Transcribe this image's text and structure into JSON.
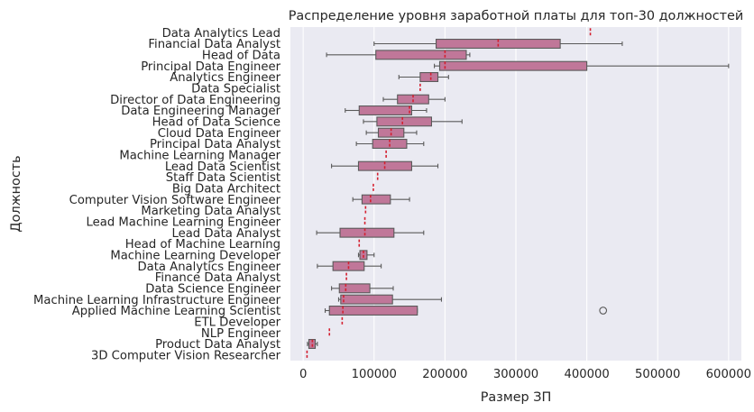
{
  "chart_data": {
    "type": "box",
    "title": "Распределение уровня заработной платы для топ-30 должностей",
    "xlabel": "Размер ЗП",
    "ylabel": "Должность",
    "xlim": [
      -18000,
      618000
    ],
    "xticks": [
      0,
      100000,
      200000,
      300000,
      400000,
      500000,
      600000
    ],
    "xtick_labels": [
      "0",
      "100000",
      "200000",
      "300000",
      "400000",
      "500000",
      "600000"
    ],
    "grid": true,
    "box_color": "#c07799",
    "edge_color": "#5a5a5a",
    "median_color": "#d42030",
    "background": "#eaeaf2",
    "categories": [
      {
        "label": "Data Analytics Lead",
        "min": 405000,
        "q1": 405000,
        "median": 405000,
        "q3": 405000,
        "max": 405000,
        "outliers": []
      },
      {
        "label": "Financial Data Analyst",
        "min": 100000,
        "q1": 187500,
        "median": 275000,
        "q3": 362500,
        "max": 450000,
        "outliers": []
      },
      {
        "label": "Head of Data",
        "min": 32973,
        "q1": 102500,
        "median": 200000,
        "q3": 230000,
        "max": 235000,
        "outliers": []
      },
      {
        "label": "Principal Data Engineer",
        "min": 185000,
        "q1": 192500,
        "median": 200000,
        "q3": 400000,
        "max": 600000,
        "outliers": []
      },
      {
        "label": "Analytics Engineer",
        "min": 135000,
        "q1": 165000,
        "median": 180000,
        "q3": 190000,
        "max": 205000,
        "outliers": []
      },
      {
        "label": "Data Specialist",
        "min": 165000,
        "q1": 165000,
        "median": 165000,
        "q3": 165000,
        "max": 165000,
        "outliers": []
      },
      {
        "label": "Director of Data Engineering",
        "min": 113000,
        "q1": 133000,
        "median": 155000,
        "q3": 177000,
        "max": 200000,
        "outliers": []
      },
      {
        "label": "Data Engineering Manager",
        "min": 59303,
        "q1": 79000,
        "median": 150000,
        "q3": 153000,
        "max": 174000,
        "outliers": []
      },
      {
        "label": "Head of Data Science",
        "min": 85000,
        "q1": 104000,
        "median": 140000,
        "q3": 181000,
        "max": 224000,
        "outliers": []
      },
      {
        "label": "Cloud Data Engineer",
        "min": 89000,
        "q1": 106000,
        "median": 124000,
        "q3": 142000,
        "max": 160000,
        "outliers": []
      },
      {
        "label": "Principal Data Analyst",
        "min": 75000,
        "q1": 98000,
        "median": 122000,
        "q3": 146000,
        "max": 170000,
        "outliers": []
      },
      {
        "label": "Machine Learning Manager",
        "min": 117000,
        "q1": 117000,
        "median": 117000,
        "q3": 117000,
        "max": 117000,
        "outliers": []
      },
      {
        "label": "Lead Data Scientist",
        "min": 40000,
        "q1": 78000,
        "median": 115000,
        "q3": 153000,
        "max": 190000,
        "outliers": []
      },
      {
        "label": "Staff Data Scientist",
        "min": 105000,
        "q1": 105000,
        "median": 105000,
        "q3": 105000,
        "max": 105000,
        "outliers": []
      },
      {
        "label": "Big Data Architect",
        "min": 99000,
        "q1": 99000,
        "median": 99000,
        "q3": 99000,
        "max": 99000,
        "outliers": []
      },
      {
        "label": "Computer Vision Software Engineer",
        "min": 70000,
        "q1": 83000,
        "median": 95000,
        "q3": 123000,
        "max": 150000,
        "outliers": []
      },
      {
        "label": "Marketing Data Analyst",
        "min": 88000,
        "q1": 88000,
        "median": 88000,
        "q3": 88000,
        "max": 88000,
        "outliers": []
      },
      {
        "label": "Lead Machine Learning Engineer",
        "min": 87000,
        "q1": 87000,
        "median": 87000,
        "q3": 87000,
        "max": 87000,
        "outliers": []
      },
      {
        "label": "Lead Data Analyst",
        "min": 19000,
        "q1": 52000,
        "median": 87000,
        "q3": 128000,
        "max": 170000,
        "outliers": []
      },
      {
        "label": "Head of Machine Learning",
        "min": 79000,
        "q1": 79000,
        "median": 79000,
        "q3": 79000,
        "max": 79000,
        "outliers": []
      },
      {
        "label": "Machine Learning Developer",
        "min": 78000,
        "q1": 80000,
        "median": 85000,
        "q3": 90000,
        "max": 100000,
        "outliers": []
      },
      {
        "label": "Data Analytics Engineer",
        "min": 20000,
        "q1": 42000,
        "median": 64000,
        "q3": 86000,
        "max": 110000,
        "outliers": []
      },
      {
        "label": "Finance Data Analyst",
        "min": 61000,
        "q1": 61000,
        "median": 61000,
        "q3": 61000,
        "max": 61000,
        "outliers": []
      },
      {
        "label": "Data Science Engineer",
        "min": 40000,
        "q1": 51000,
        "median": 60000,
        "q3": 94000,
        "max": 127000,
        "outliers": []
      },
      {
        "label": "Machine Learning Infrastructure Engineer",
        "min": 50000,
        "q1": 53000,
        "median": 57000,
        "q3": 126000,
        "max": 195000,
        "outliers": []
      },
      {
        "label": "Applied Machine Learning Scientist",
        "min": 31000,
        "q1": 37000,
        "median": 56000,
        "q3": 161000,
        "max": 161000,
        "outliers": [
          423000
        ]
      },
      {
        "label": "ETL Developer",
        "min": 55000,
        "q1": 55000,
        "median": 55000,
        "q3": 55000,
        "max": 55000,
        "outliers": []
      },
      {
        "label": "NLP Engineer",
        "min": 37000,
        "q1": 37000,
        "median": 37000,
        "q3": 37000,
        "max": 37000,
        "outliers": []
      },
      {
        "label": "Product Data Analyst",
        "min": 6072,
        "q1": 8000,
        "median": 13000,
        "q3": 17000,
        "max": 20000,
        "outliers": []
      },
      {
        "label": "3D Computer Vision Researcher",
        "min": 5409,
        "q1": 5409,
        "median": 5409,
        "q3": 5409,
        "max": 5409,
        "outliers": []
      }
    ]
  }
}
